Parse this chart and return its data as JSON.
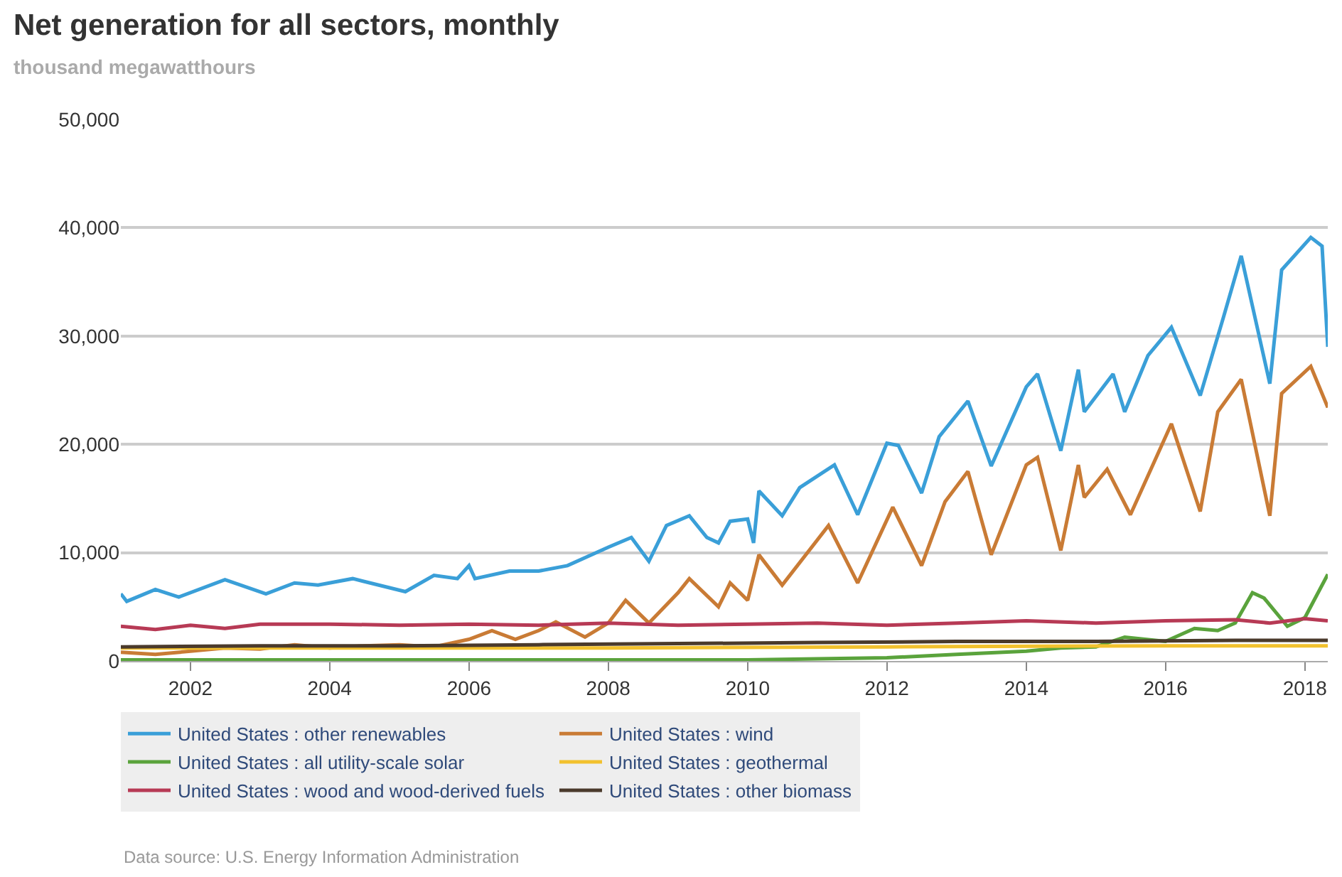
{
  "chart_data": {
    "type": "line",
    "title": "Net generation for all sectors, monthly",
    "subtitle": "thousand megawatthours",
    "annotations": [
      "Data source: U.S. Energy Information Administration"
    ],
    "xlim": [
      "2001-01",
      "2018-05"
    ],
    "xticks": [
      "2002",
      "2004",
      "2006",
      "2008",
      "2010",
      "2012",
      "2014",
      "2016",
      "2018"
    ],
    "ylim": [
      0,
      50000
    ],
    "yticks": [
      {
        "value": 0,
        "label": "0"
      },
      {
        "value": 10000,
        "label": "10,000"
      },
      {
        "value": 20000,
        "label": "20,000"
      },
      {
        "value": 30000,
        "label": "30,000"
      },
      {
        "value": 40000,
        "label": "40,000"
      },
      {
        "value": 50000,
        "label": "50,000"
      }
    ],
    "grid": "y",
    "legend": "bottom",
    "marker": "none",
    "line_style": "solid",
    "series": [
      {
        "name": "United States : other renewables",
        "color": "#3a9fd8",
        "x": [
          "2001-01",
          "2001-02",
          "2001-07",
          "2001-11",
          "2002-07",
          "2003-02",
          "2003-07",
          "2003-11",
          "2004-05",
          "2005-02",
          "2005-07",
          "2005-11",
          "2006-01",
          "2006-02",
          "2006-08",
          "2007-01",
          "2007-06",
          "2008-01",
          "2008-05",
          "2008-08",
          "2008-11",
          "2009-03",
          "2009-06",
          "2009-08",
          "2009-10",
          "2010-01",
          "2010-02",
          "2010-03",
          "2010-07",
          "2010-10",
          "2011-04",
          "2011-08",
          "2012-01",
          "2012-03",
          "2012-07",
          "2012-10",
          "2013-03",
          "2013-07",
          "2014-01",
          "2014-03",
          "2014-07",
          "2014-10",
          "2014-11",
          "2015-04",
          "2015-06",
          "2015-10",
          "2016-02",
          "2016-07",
          "2016-11",
          "2017-02",
          "2017-07",
          "2017-09",
          "2018-02",
          "2018-04",
          "2018-05"
        ],
        "values": [
          6200,
          5500,
          6600,
          5900,
          7500,
          6200,
          7200,
          7000,
          7600,
          6400,
          7900,
          7600,
          8800,
          7600,
          8300,
          8300,
          8800,
          10500,
          11400,
          9200,
          12500,
          13400,
          11400,
          10900,
          12900,
          13100,
          10900,
          15700,
          13400,
          16000,
          18100,
          13500,
          20100,
          19900,
          15500,
          20700,
          24000,
          18000,
          25300,
          26500,
          19400,
          26900,
          23000,
          26500,
          23000,
          28200,
          30800,
          24500,
          31800,
          37400,
          25600,
          36100,
          39100,
          38300,
          29000
        ]
      },
      {
        "name": "United States : wind",
        "color": "#c97b35",
        "x": [
          "2001-01",
          "2001-07",
          "2002-01",
          "2002-07",
          "2003-01",
          "2003-07",
          "2004-01",
          "2004-07",
          "2005-01",
          "2005-07",
          "2006-01",
          "2006-05",
          "2006-09",
          "2007-01",
          "2007-04",
          "2007-09",
          "2008-01",
          "2008-04",
          "2008-08",
          "2009-01",
          "2009-03",
          "2009-08",
          "2009-10",
          "2010-01",
          "2010-03",
          "2010-07",
          "2011-03",
          "2011-08",
          "2012-02",
          "2012-07",
          "2012-11",
          "2013-03",
          "2013-07",
          "2014-01",
          "2014-03",
          "2014-07",
          "2014-10",
          "2014-11",
          "2015-03",
          "2015-07",
          "2016-02",
          "2016-07",
          "2016-10",
          "2017-02",
          "2017-07",
          "2017-09",
          "2018-02",
          "2018-05"
        ],
        "values": [
          800,
          600,
          900,
          1200,
          1100,
          1500,
          1200,
          1400,
          1500,
          1300,
          2000,
          2800,
          2000,
          2800,
          3600,
          2200,
          3500,
          5600,
          3500,
          6300,
          7600,
          5000,
          7200,
          5600,
          9800,
          7000,
          12500,
          7200,
          14200,
          8800,
          14700,
          17500,
          9800,
          18100,
          18800,
          10200,
          18100,
          15100,
          17700,
          13500,
          21900,
          13800,
          23000,
          26000,
          13400,
          24700,
          27200,
          23400
        ]
      },
      {
        "name": "United States : all utility-scale solar",
        "color": "#5aa33c",
        "x": [
          "2001-01",
          "2004-01",
          "2008-01",
          "2010-01",
          "2011-01",
          "2012-01",
          "2013-01",
          "2014-01",
          "2014-07",
          "2015-01",
          "2015-06",
          "2016-01",
          "2016-06",
          "2016-10",
          "2017-01",
          "2017-04",
          "2017-06",
          "2017-10",
          "2018-01",
          "2018-05"
        ],
        "values": [
          100,
          100,
          100,
          100,
          200,
          300,
          600,
          900,
          1200,
          1300,
          2200,
          1800,
          3000,
          2800,
          3500,
          6300,
          5800,
          3200,
          4000,
          8000
        ]
      },
      {
        "name": "United States : geothermal",
        "color": "#f2c12e",
        "x": [
          "2001-01",
          "2004-01",
          "2008-01",
          "2012-01",
          "2016-01",
          "2018-05"
        ],
        "values": [
          1200,
          1200,
          1200,
          1300,
          1400,
          1400
        ]
      },
      {
        "name": "United States : wood and wood-derived fuels",
        "color": "#b73a55",
        "x": [
          "2001-01",
          "2001-07",
          "2002-01",
          "2002-07",
          "2003-01",
          "2004-01",
          "2005-01",
          "2006-01",
          "2007-01",
          "2008-01",
          "2009-01",
          "2010-01",
          "2011-01",
          "2012-01",
          "2013-01",
          "2014-01",
          "2015-01",
          "2016-01",
          "2017-01",
          "2017-07",
          "2018-01",
          "2018-05"
        ],
        "values": [
          3200,
          2900,
          3300,
          3000,
          3400,
          3400,
          3300,
          3400,
          3300,
          3500,
          3300,
          3400,
          3500,
          3300,
          3500,
          3700,
          3500,
          3700,
          3800,
          3500,
          3900,
          3700
        ]
      },
      {
        "name": "United States : other biomass",
        "color": "#4a3a2c",
        "x": [
          "2001-01",
          "2003-01",
          "2005-01",
          "2007-01",
          "2009-01",
          "2011-01",
          "2013-01",
          "2015-01",
          "2017-01",
          "2018-05"
        ],
        "values": [
          1300,
          1400,
          1400,
          1500,
          1600,
          1700,
          1800,
          1800,
          1900,
          1900
        ]
      }
    ]
  }
}
